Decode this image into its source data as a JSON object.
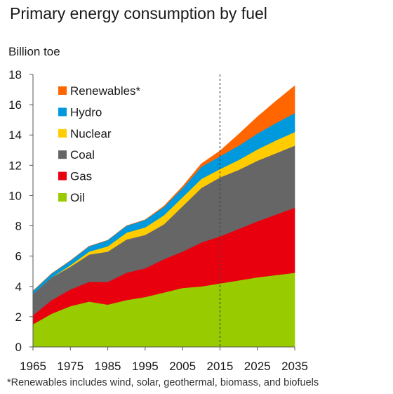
{
  "title": "Primary energy consumption by fuel",
  "footnote": "*Renewables includes wind, solar, geothermal, biomass, and biofuels",
  "chart_data": {
    "type": "area",
    "stacked": true,
    "title": "Primary energy consumption by fuel",
    "ylabel": "Billion toe",
    "xlabel": "",
    "xlim": [
      1965,
      2035
    ],
    "ylim": [
      0,
      18
    ],
    "xticks": [
      1965,
      1975,
      1985,
      1995,
      2005,
      2015,
      2025,
      2035
    ],
    "yticks": [
      0,
      2,
      4,
      6,
      8,
      10,
      12,
      14,
      16,
      18
    ],
    "grid": false,
    "legend_position": "top-left",
    "projection_divider_x": 2015,
    "x": [
      1965,
      1970,
      1975,
      1980,
      1985,
      1990,
      1995,
      2000,
      2005,
      2010,
      2015,
      2020,
      2025,
      2030,
      2035
    ],
    "series": [
      {
        "name": "Oil",
        "color": "#99cc00",
        "values": [
          1.5,
          2.2,
          2.7,
          3.0,
          2.8,
          3.1,
          3.3,
          3.6,
          3.9,
          4.0,
          4.2,
          4.4,
          4.6,
          4.75,
          4.9
        ]
      },
      {
        "name": "Gas",
        "color": "#e8000f",
        "values": [
          0.6,
          0.9,
          1.1,
          1.3,
          1.5,
          1.8,
          1.9,
          2.2,
          2.4,
          2.9,
          3.1,
          3.4,
          3.7,
          4.0,
          4.3
        ]
      },
      {
        "name": "Coal",
        "color": "#666666",
        "values": [
          1.4,
          1.5,
          1.5,
          1.8,
          2.0,
          2.2,
          2.2,
          2.3,
          3.0,
          3.6,
          3.9,
          3.9,
          4.0,
          4.05,
          4.1
        ]
      },
      {
        "name": "Nuclear",
        "color": "#ffcc00",
        "values": [
          0.0,
          0.0,
          0.1,
          0.2,
          0.35,
          0.45,
          0.5,
          0.6,
          0.6,
          0.6,
          0.55,
          0.65,
          0.75,
          0.85,
          0.9
        ]
      },
      {
        "name": "Hydro",
        "color": "#0099dd",
        "values": [
          0.2,
          0.25,
          0.3,
          0.35,
          0.4,
          0.45,
          0.5,
          0.55,
          0.6,
          0.8,
          0.85,
          0.95,
          1.05,
          1.15,
          1.25
        ]
      },
      {
        "name": "Renewables*",
        "color": "#ff6600",
        "values": [
          0.0,
          0.0,
          0.0,
          0.0,
          0.0,
          0.0,
          0.0,
          0.05,
          0.1,
          0.2,
          0.35,
          0.75,
          1.1,
          1.45,
          1.8
        ]
      }
    ]
  }
}
